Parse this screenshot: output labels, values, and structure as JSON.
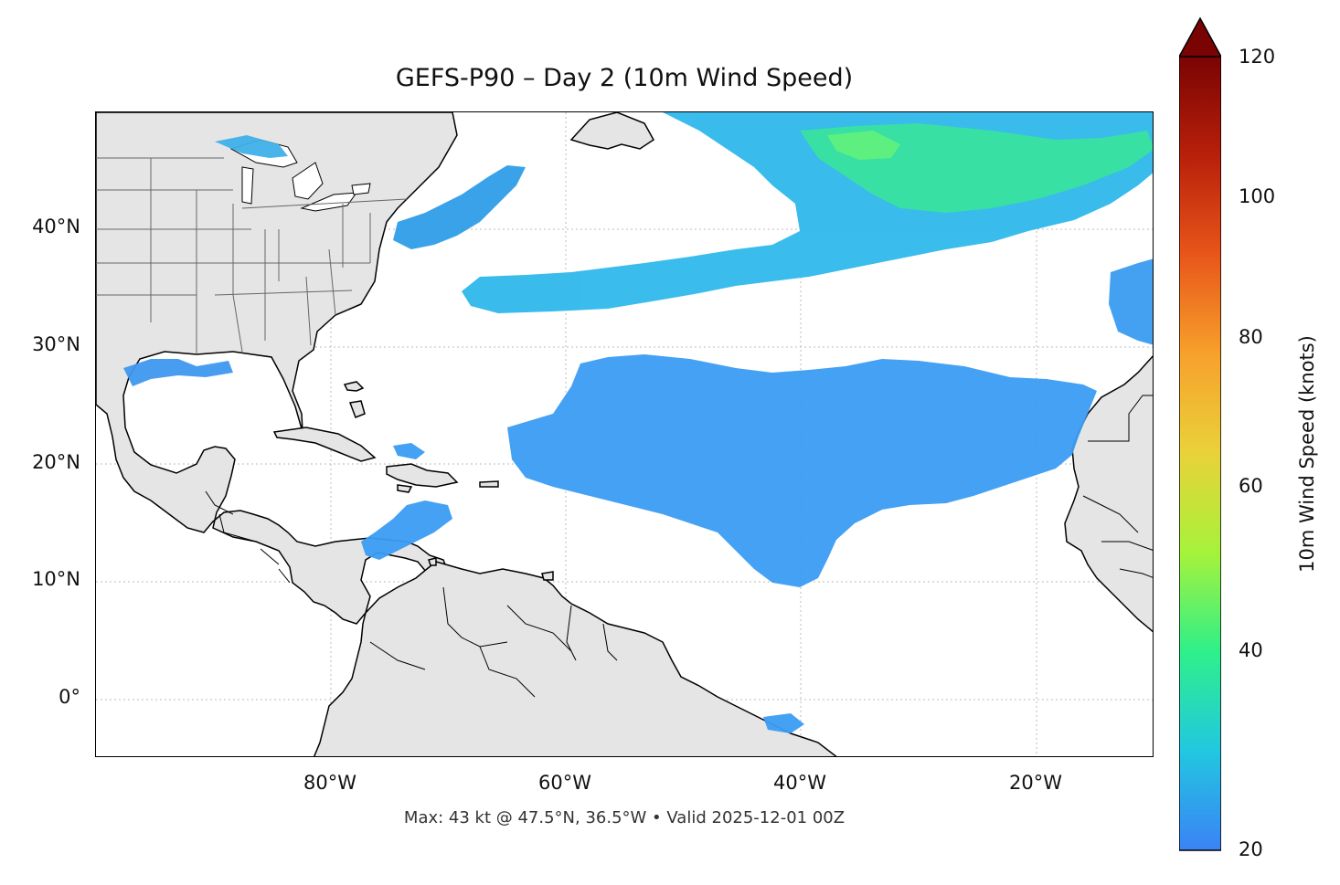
{
  "title": "GEFS-P90 – Day 2 (10m Wind Speed)",
  "footer": "Max: 43 kt @ 47.5°N, 36.5°W • Valid 2025-12-01 00Z",
  "lat_ticks": [
    "40°N",
    "30°N",
    "20°N",
    "10°N",
    "0°"
  ],
  "lon_ticks": [
    "80°W",
    "60°W",
    "40°W",
    "20°W"
  ],
  "colorbar": {
    "label": "10m Wind Speed (knots)",
    "ticks": [
      "120",
      "100",
      "80",
      "60",
      "40",
      "20"
    ],
    "range": [
      20,
      120
    ],
    "extend": "max",
    "colors": [
      "#3b82f6",
      "#22c7e0",
      "#2ef08a",
      "#a6f23a",
      "#e9d23a",
      "#f7a12b",
      "#e8561a",
      "#b8200a",
      "#7a0403"
    ]
  },
  "map": {
    "extent_lon": [
      -100,
      -10
    ],
    "extent_lat": [
      -5,
      50
    ],
    "land_color": "#e5e5e5",
    "max_wind_kt": 43,
    "max_wind_location": "47.5°N, 36.5°W"
  }
}
